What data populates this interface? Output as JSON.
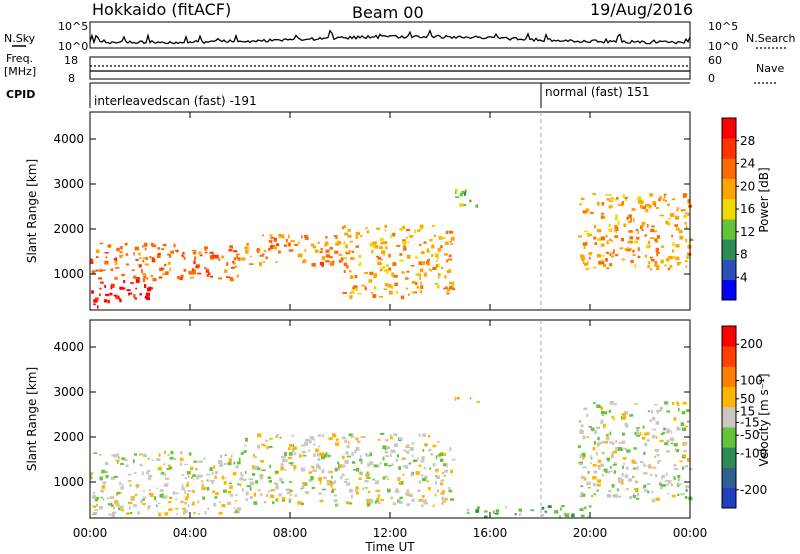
{
  "header": {
    "station": "Hokkaido (fitACF)",
    "beam": "Beam 00",
    "date": "19/Aug/2016"
  },
  "noise_panel": {
    "left_label": "N.Sky",
    "right_label": "N.Search",
    "left_ticks": [
      "10^5",
      "10^0"
    ],
    "right_ticks": [
      "10^5",
      "10^0"
    ]
  },
  "freq_panel": {
    "left_label_1": "Freq.",
    "left_label_2": "[MHz]",
    "right_label": "Nave",
    "left_ticks": [
      "18",
      "8"
    ],
    "right_ticks": [
      "60",
      "0"
    ]
  },
  "cpid_panel": {
    "label": "CPID",
    "mode_1": "interleavedscan (fast) -191",
    "mode_2": "normal (fast) 151"
  },
  "colors": {
    "power": [
      "#0000ff",
      "#2a4fb8",
      "#2e8b57",
      "#66c23b",
      "#f0d800",
      "#ffa500",
      "#ff6a00",
      "#ff3300",
      "#ff0000"
    ],
    "velocity": [
      "#2040c0",
      "#306090",
      "#2e8b57",
      "#66c23b",
      "#c8c8c0",
      "#ffb400",
      "#ff8000",
      "#ff4000",
      "#ff0000"
    ]
  },
  "chart_data": [
    {
      "type": "heatmap",
      "name": "power",
      "ylabel": "Slant Range [km]",
      "xlabel": "",
      "x_ticks": [
        "00:00",
        "04:00",
        "08:00",
        "12:00",
        "16:00",
        "20:00",
        "00:00"
      ],
      "y_ticks": [
        1000,
        2000,
        3000,
        4000
      ],
      "ylim": [
        200,
        4600
      ],
      "colorbar": {
        "label": "Power [dB]",
        "ticks": [
          4,
          8,
          12,
          16,
          20,
          24,
          28
        ],
        "range": [
          0,
          32
        ]
      },
      "echo_regions": [
        {
          "t0": 0.0,
          "t1": 2.5,
          "r0": 300,
          "r1": 900,
          "value": 30
        },
        {
          "t0": 0.0,
          "t1": 6.0,
          "r0": 900,
          "r1": 1700,
          "value": 24
        },
        {
          "t0": 6.0,
          "t1": 10.0,
          "r0": 1200,
          "r1": 1900,
          "value": 22
        },
        {
          "t0": 10.0,
          "t1": 14.5,
          "r0": 500,
          "r1": 2100,
          "value": 20
        },
        {
          "t0": 14.5,
          "t1": 15.5,
          "r0": 2500,
          "r1": 2900,
          "value": 12
        },
        {
          "t0": 19.5,
          "t1": 24.0,
          "r0": 1100,
          "r1": 2800,
          "value": 20
        }
      ]
    },
    {
      "type": "heatmap",
      "name": "velocity",
      "ylabel": "Slant Range [km]",
      "xlabel": "Time UT",
      "x_ticks": [
        "00:00",
        "04:00",
        "08:00",
        "12:00",
        "16:00",
        "20:00",
        "00:00"
      ],
      "y_ticks": [
        1000,
        2000,
        3000,
        4000
      ],
      "ylim": [
        200,
        4600
      ],
      "colorbar": {
        "label": "Velocity [m s⁻¹]",
        "ticks": [
          -200,
          -100,
          -50,
          -15,
          15,
          50,
          100,
          200
        ],
        "range": [
          -250,
          250
        ]
      },
      "echo_regions": [
        {
          "t0": 0.0,
          "t1": 6.0,
          "r0": 300,
          "r1": 1700,
          "value": 0
        },
        {
          "t0": 6.0,
          "t1": 14.5,
          "r0": 500,
          "r1": 2100,
          "value": 0
        },
        {
          "t0": 14.5,
          "t1": 15.5,
          "r0": 2750,
          "r1": 2900,
          "value": 60
        },
        {
          "t0": 15.0,
          "t1": 20.0,
          "r0": 250,
          "r1": 500,
          "value": -60
        },
        {
          "t0": 19.5,
          "t1": 24.0,
          "r0": 600,
          "r1": 2800,
          "value": 0
        }
      ]
    }
  ]
}
